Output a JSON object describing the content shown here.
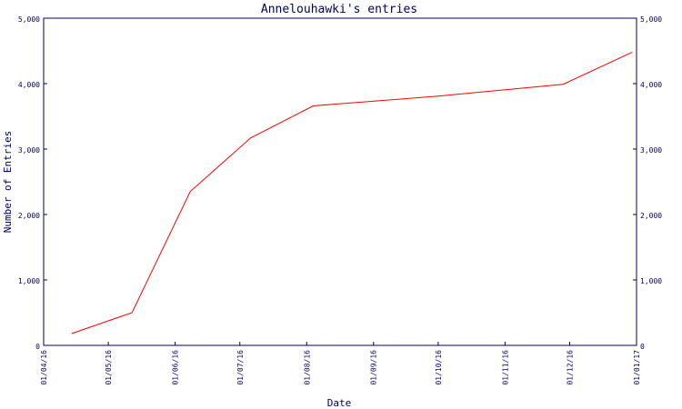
{
  "chart_data": {
    "type": "line",
    "title": "Annelouhawki's entries",
    "xlabel": "Date",
    "ylabel": "Number of Entries",
    "x_ticks": [
      "01/04/16",
      "01/05/16",
      "01/06/16",
      "01/07/16",
      "01/08/16",
      "01/09/16",
      "01/10/16",
      "01/11/16",
      "01/12/16",
      "01/01/17"
    ],
    "y_ticks": [
      "0",
      "1,000",
      "2,000",
      "3,000",
      "4,000",
      "5,000"
    ],
    "ylim": [
      0,
      5000
    ],
    "xlim": [
      "2016-04-01",
      "2017-01-01"
    ],
    "grid": false,
    "series": [
      {
        "color": "#ff0000",
        "points": [
          {
            "x": "2016-04-14",
            "y": 180
          },
          {
            "x": "2016-05-12",
            "y": 500
          },
          {
            "x": "2016-06-08",
            "y": 2350
          },
          {
            "x": "2016-07-06",
            "y": 3170
          },
          {
            "x": "2016-08-04",
            "y": 3660
          },
          {
            "x": "2016-10-01",
            "y": 3810
          },
          {
            "x": "2016-11-28",
            "y": 3990
          },
          {
            "x": "2016-12-30",
            "y": 4480
          }
        ]
      }
    ],
    "axis_color": "#000066"
  }
}
